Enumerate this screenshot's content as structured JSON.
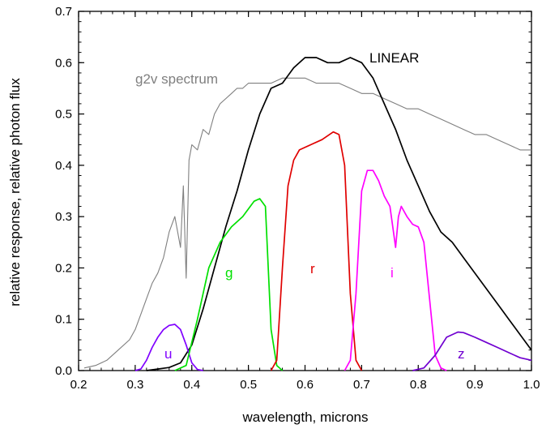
{
  "chart_data": {
    "type": "line",
    "title": "",
    "xlabel": "wavelength, microns",
    "ylabel": "relative response, relative photon flux",
    "xlim": [
      0.2,
      1.0
    ],
    "ylim": [
      0.0,
      0.7
    ],
    "grid": false,
    "legend": "none",
    "x_ticks": [
      "0.2",
      "0.3",
      "0.4",
      "0.5",
      "0.6",
      "0.7",
      "0.8",
      "0.9",
      "1.0"
    ],
    "y_ticks": [
      "0.0",
      "0.1",
      "0.2",
      "0.3",
      "0.4",
      "0.5",
      "0.6",
      "0.7"
    ],
    "series": [
      {
        "name": "g2v spectrum",
        "color": "#7f7f7f",
        "points": [
          [
            0.21,
            0.005
          ],
          [
            0.23,
            0.01
          ],
          [
            0.25,
            0.02
          ],
          [
            0.27,
            0.04
          ],
          [
            0.29,
            0.06
          ],
          [
            0.3,
            0.08
          ],
          [
            0.31,
            0.11
          ],
          [
            0.32,
            0.14
          ],
          [
            0.33,
            0.17
          ],
          [
            0.34,
            0.19
          ],
          [
            0.35,
            0.22
          ],
          [
            0.36,
            0.27
          ],
          [
            0.37,
            0.3
          ],
          [
            0.38,
            0.24
          ],
          [
            0.385,
            0.36
          ],
          [
            0.39,
            0.18
          ],
          [
            0.395,
            0.41
          ],
          [
            0.4,
            0.44
          ],
          [
            0.41,
            0.43
          ],
          [
            0.42,
            0.47
          ],
          [
            0.43,
            0.46
          ],
          [
            0.44,
            0.5
          ],
          [
            0.45,
            0.52
          ],
          [
            0.46,
            0.53
          ],
          [
            0.47,
            0.54
          ],
          [
            0.48,
            0.55
          ],
          [
            0.49,
            0.55
          ],
          [
            0.5,
            0.56
          ],
          [
            0.52,
            0.56
          ],
          [
            0.54,
            0.56
          ],
          [
            0.56,
            0.57
          ],
          [
            0.58,
            0.57
          ],
          [
            0.6,
            0.57
          ],
          [
            0.62,
            0.56
          ],
          [
            0.64,
            0.56
          ],
          [
            0.66,
            0.56
          ],
          [
            0.68,
            0.55
          ],
          [
            0.7,
            0.54
          ],
          [
            0.72,
            0.54
          ],
          [
            0.74,
            0.53
          ],
          [
            0.76,
            0.52
          ],
          [
            0.78,
            0.51
          ],
          [
            0.8,
            0.51
          ],
          [
            0.82,
            0.5
          ],
          [
            0.84,
            0.49
          ],
          [
            0.86,
            0.48
          ],
          [
            0.88,
            0.47
          ],
          [
            0.9,
            0.46
          ],
          [
            0.92,
            0.46
          ],
          [
            0.94,
            0.45
          ],
          [
            0.96,
            0.44
          ],
          [
            0.98,
            0.43
          ],
          [
            1.0,
            0.43
          ]
        ]
      },
      {
        "name": "LINEAR",
        "color": "#000000",
        "points": [
          [
            0.32,
            0.0
          ],
          [
            0.34,
            0.003
          ],
          [
            0.36,
            0.006
          ],
          [
            0.38,
            0.015
          ],
          [
            0.4,
            0.05
          ],
          [
            0.42,
            0.12
          ],
          [
            0.44,
            0.2
          ],
          [
            0.46,
            0.28
          ],
          [
            0.48,
            0.35
          ],
          [
            0.5,
            0.43
          ],
          [
            0.52,
            0.5
          ],
          [
            0.54,
            0.55
          ],
          [
            0.56,
            0.56
          ],
          [
            0.58,
            0.59
          ],
          [
            0.6,
            0.61
          ],
          [
            0.62,
            0.61
          ],
          [
            0.64,
            0.6
          ],
          [
            0.66,
            0.6
          ],
          [
            0.68,
            0.61
          ],
          [
            0.7,
            0.6
          ],
          [
            0.72,
            0.57
          ],
          [
            0.74,
            0.52
          ],
          [
            0.76,
            0.47
          ],
          [
            0.78,
            0.41
          ],
          [
            0.8,
            0.36
          ],
          [
            0.82,
            0.31
          ],
          [
            0.84,
            0.27
          ],
          [
            0.86,
            0.25
          ],
          [
            0.88,
            0.22
          ],
          [
            0.9,
            0.19
          ],
          [
            0.92,
            0.16
          ],
          [
            0.94,
            0.13
          ],
          [
            0.96,
            0.1
          ],
          [
            0.98,
            0.07
          ],
          [
            1.0,
            0.04
          ]
        ]
      },
      {
        "name": "u",
        "color": "#8000ff",
        "points": [
          [
            0.3,
            0.0
          ],
          [
            0.31,
            0.003
          ],
          [
            0.32,
            0.02
          ],
          [
            0.33,
            0.045
          ],
          [
            0.34,
            0.065
          ],
          [
            0.35,
            0.08
          ],
          [
            0.36,
            0.088
          ],
          [
            0.37,
            0.09
          ],
          [
            0.38,
            0.08
          ],
          [
            0.39,
            0.05
          ],
          [
            0.4,
            0.015
          ],
          [
            0.41,
            0.002
          ],
          [
            0.42,
            0.0
          ]
        ]
      },
      {
        "name": "g",
        "color": "#00e000",
        "points": [
          [
            0.37,
            0.0
          ],
          [
            0.39,
            0.01
          ],
          [
            0.41,
            0.1
          ],
          [
            0.43,
            0.2
          ],
          [
            0.45,
            0.25
          ],
          [
            0.47,
            0.28
          ],
          [
            0.49,
            0.3
          ],
          [
            0.51,
            0.33
          ],
          [
            0.52,
            0.335
          ],
          [
            0.53,
            0.32
          ],
          [
            0.54,
            0.08
          ],
          [
            0.55,
            0.01
          ],
          [
            0.56,
            0.0
          ]
        ]
      },
      {
        "name": "r",
        "color": "#e00000",
        "points": [
          [
            0.54,
            0.0
          ],
          [
            0.55,
            0.02
          ],
          [
            0.56,
            0.2
          ],
          [
            0.57,
            0.36
          ],
          [
            0.58,
            0.41
          ],
          [
            0.59,
            0.43
          ],
          [
            0.61,
            0.44
          ],
          [
            0.63,
            0.45
          ],
          [
            0.65,
            0.465
          ],
          [
            0.66,
            0.46
          ],
          [
            0.67,
            0.4
          ],
          [
            0.68,
            0.15
          ],
          [
            0.69,
            0.02
          ],
          [
            0.7,
            0.0
          ]
        ]
      },
      {
        "name": "i",
        "color": "#ff00ff",
        "points": [
          [
            0.67,
            0.0
          ],
          [
            0.68,
            0.02
          ],
          [
            0.69,
            0.15
          ],
          [
            0.7,
            0.35
          ],
          [
            0.71,
            0.39
          ],
          [
            0.72,
            0.39
          ],
          [
            0.73,
            0.37
          ],
          [
            0.74,
            0.34
          ],
          [
            0.75,
            0.32
          ],
          [
            0.755,
            0.28
          ],
          [
            0.76,
            0.24
          ],
          [
            0.765,
            0.3
          ],
          [
            0.77,
            0.32
          ],
          [
            0.78,
            0.3
          ],
          [
            0.79,
            0.285
          ],
          [
            0.8,
            0.28
          ],
          [
            0.81,
            0.25
          ],
          [
            0.82,
            0.14
          ],
          [
            0.83,
            0.03
          ],
          [
            0.84,
            0.005
          ],
          [
            0.85,
            0.0
          ]
        ]
      },
      {
        "name": "z",
        "color": "#7000d0",
        "points": [
          [
            0.79,
            0.0
          ],
          [
            0.81,
            0.005
          ],
          [
            0.83,
            0.03
          ],
          [
            0.85,
            0.065
          ],
          [
            0.87,
            0.075
          ],
          [
            0.88,
            0.074
          ],
          [
            0.9,
            0.065
          ],
          [
            0.92,
            0.055
          ],
          [
            0.94,
            0.045
          ],
          [
            0.96,
            0.035
          ],
          [
            0.98,
            0.025
          ],
          [
            1.0,
            0.02
          ]
        ]
      }
    ],
    "labels": {
      "g2v": "g2v spectrum",
      "linear": "LINEAR",
      "u": "u",
      "g": "g",
      "r": "r",
      "i": "i",
      "z": "z"
    }
  }
}
